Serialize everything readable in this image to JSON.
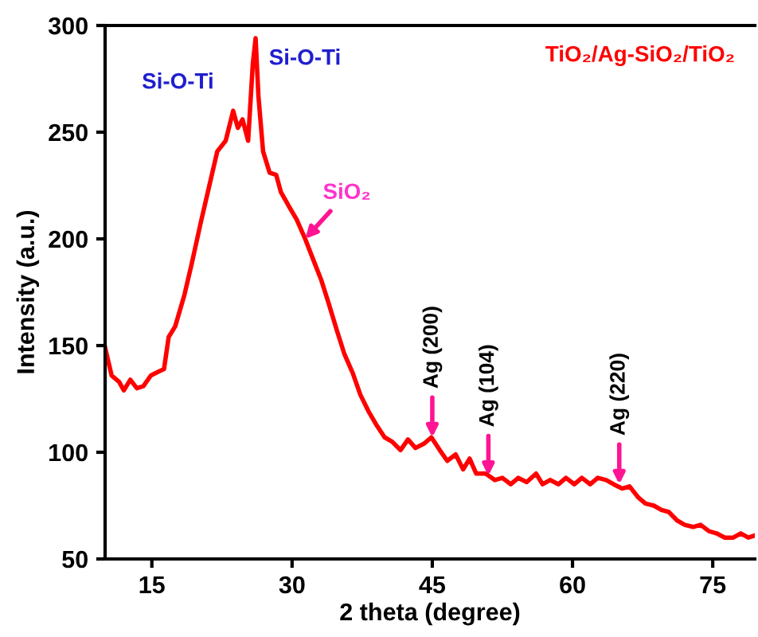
{
  "chart_data": {
    "type": "line",
    "xlabel": "2 theta (degree)",
    "ylabel": "Intensity (a.u.)",
    "xlim": [
      10,
      79.5
    ],
    "xticks": [
      15,
      30,
      45,
      60,
      75
    ],
    "ylim": [
      50,
      300
    ],
    "yticks": [
      50,
      100,
      150,
      200,
      250,
      300
    ],
    "grid": false,
    "legend": "top right",
    "marker": "none",
    "line_style": "solid",
    "series": [
      {
        "name": "TiO₂/Ag-SiO₂/TiO₂",
        "color": "#ff0000",
        "x": [
          10,
          10.7,
          11.5,
          12,
          12.7,
          13.4,
          14.1,
          14.9,
          15.8,
          16.3,
          16.8,
          17.5,
          18.5,
          19.3,
          20.2,
          21.1,
          22,
          22.9,
          23.7,
          24.2,
          24.7,
          25.3,
          25.8,
          26.1,
          26.4,
          26.9,
          27.6,
          28.3,
          28.8,
          29.7,
          30.5,
          31.4,
          32.2,
          33.1,
          33.9,
          34.8,
          35.6,
          36.5,
          37.3,
          38.2,
          39,
          39.9,
          40.7,
          41.6,
          42.4,
          43.2,
          44.1,
          44.9,
          45.8,
          46.6,
          47.5,
          48.3,
          49,
          49.7,
          50.7,
          51.7,
          52.5,
          53.4,
          54.2,
          55.1,
          56.1,
          56.8,
          57.6,
          58.5,
          59.3,
          60.2,
          61,
          61.9,
          62.7,
          63.6,
          64.4,
          65.3,
          66.1,
          67,
          67.8,
          68.7,
          69.5,
          70.3,
          71.2,
          72,
          72.9,
          73.7,
          74.6,
          75.4,
          76.3,
          77.2,
          78,
          78.8,
          79.5
        ],
        "values": [
          149,
          136,
          133,
          129,
          134,
          130,
          131,
          136,
          138,
          139,
          154,
          159,
          174,
          189,
          207,
          224,
          241,
          246,
          260,
          252,
          256,
          246,
          282,
          294,
          267,
          241,
          231,
          230,
          222,
          215,
          209,
          200,
          191,
          181,
          170,
          157,
          146,
          137,
          127,
          119,
          113,
          107,
          105,
          101,
          106,
          102,
          104,
          107,
          101,
          96,
          99,
          92,
          97,
          90,
          90,
          87,
          88,
          85,
          88,
          86,
          90,
          85,
          87,
          85,
          88,
          85,
          88,
          85,
          88,
          87,
          85,
          83,
          84,
          79,
          76,
          75,
          73,
          72,
          68,
          66,
          65,
          66,
          63,
          62,
          60,
          60,
          62,
          60,
          61
        ]
      }
    ],
    "annotations": [
      {
        "text": "Si-O-Ti",
        "x": 23.7,
        "y": 260
      },
      {
        "text": "Si-O-Ti",
        "x": 26.1,
        "y": 294
      },
      {
        "text": "SiO₂",
        "x": 31.4,
        "y": 200
      },
      {
        "text": "Ag (200)",
        "x": 45,
        "y": 107
      },
      {
        "text": "Ag (104)",
        "x": 51,
        "y": 89
      },
      {
        "text": "Ag (220)",
        "x": 65,
        "y": 85
      }
    ]
  }
}
